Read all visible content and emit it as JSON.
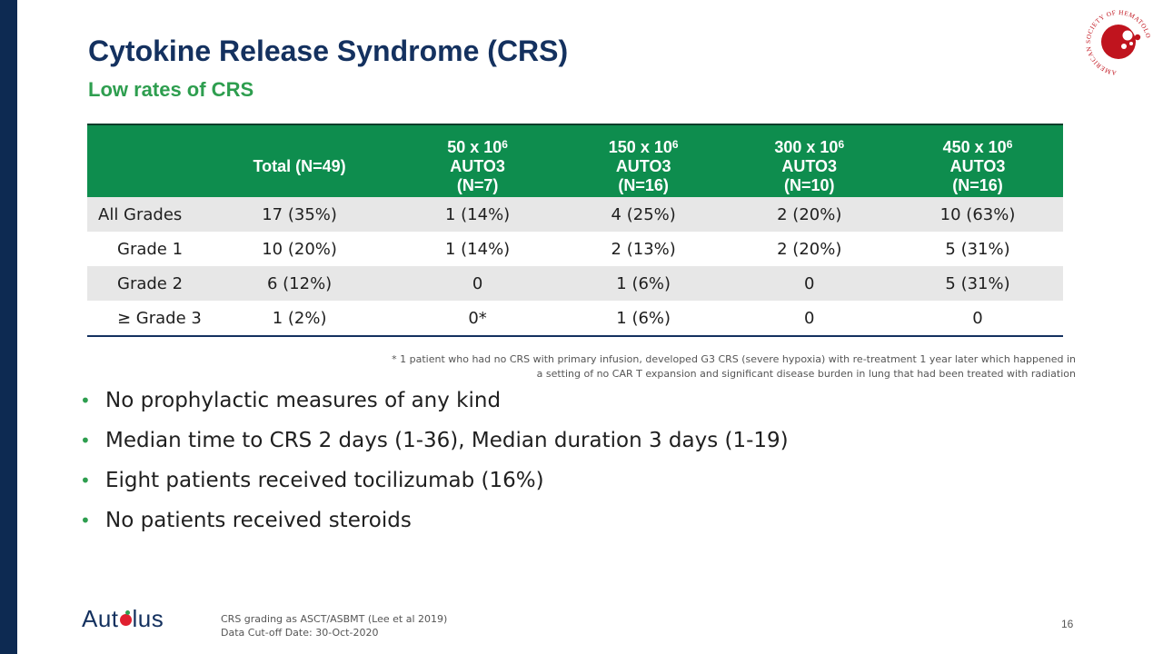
{
  "slide": {
    "title": "Cytokine Release Syndrome (CRS)",
    "subtitle": "Low rates of CRS",
    "page_number": "16",
    "colors": {
      "title": "#14315f",
      "accent": "#2e9e4f",
      "table_header": "#0e8d4e",
      "sidebar": "#0d2a52",
      "logo_red": "#c0141e"
    }
  },
  "table": {
    "headers": [
      {
        "line1": "",
        "sup": "",
        "line2": "",
        "line3": ""
      },
      {
        "line1": "Total (N=49)",
        "sup": "",
        "line2": "",
        "line3": ""
      },
      {
        "line1": "50 x 10",
        "sup": "6",
        "line2": "AUTO3",
        "line3": "(N=7)"
      },
      {
        "line1": "150 x 10",
        "sup": "6",
        "line2": "AUTO3",
        "line3": "(N=16)"
      },
      {
        "line1": "300 x 10",
        "sup": "6",
        "line2": "AUTO3",
        "line3": "(N=10)"
      },
      {
        "line1": "450 x 10",
        "sup": "6",
        "line2": "AUTO3",
        "line3": "(N=16)"
      }
    ],
    "rows": [
      [
        "All Grades",
        "17 (35%)",
        "1 (14%)",
        "4 (25%)",
        "2 (20%)",
        "10 (63%)"
      ],
      [
        "Grade 1",
        "10 (20%)",
        "1 (14%)",
        "2 (13%)",
        "2 (20%)",
        "5 (31%)"
      ],
      [
        "Grade 2",
        "6 (12%)",
        "0",
        "1 (6%)",
        "0",
        "5 (31%)"
      ],
      [
        "≥ Grade 3",
        "1 (2%)",
        "0*",
        "1 (6%)",
        "0",
        "0"
      ]
    ]
  },
  "footnote": {
    "line1": "* 1 patient who had no CRS with primary infusion, developed G3 CRS (severe hypoxia) with re-treatment 1 year later which happened in",
    "line2": "a setting of no CAR T expansion and significant disease burden in lung that had been treated with radiation"
  },
  "bullets": [
    "No prophylactic measures of any kind",
    "Median time to CRS 2 days (1-36), Median duration 3 days (1-19)",
    "Eight patients received tocilizumab (16%)",
    "No patients received steroids"
  ],
  "footer": {
    "company_pre": "Aut",
    "company_post": "lus",
    "note1": "CRS grading as ASCT/ASBMT (Lee et al 2019)",
    "note2": "Data Cut-off Date: 30-Oct-2020"
  },
  "logo": {
    "text": "AMERICAN SOCIETY OF HEMATOLOGY",
    "icon": "ash-logo-icon"
  }
}
